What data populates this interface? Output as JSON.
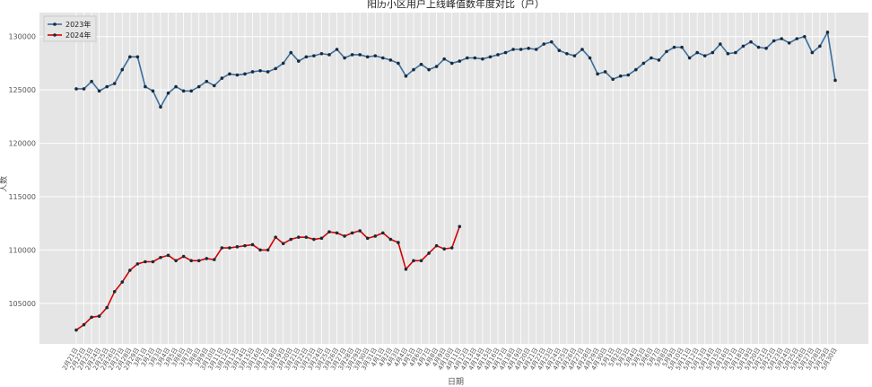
{
  "chart_data": {
    "type": "line",
    "title": "阳历小区用户上线峰值数年度对比（户）",
    "xlabel": "日期",
    "ylabel": "人数",
    "categories": [
      "2月21日",
      "2月22日",
      "2月23日",
      "2月24日",
      "2月25日",
      "2月26日",
      "2月27日",
      "2月28日",
      "2月29日",
      "3月1日",
      "3月2日",
      "3月3日",
      "3月4日",
      "3月5日",
      "3月6日",
      "3月7日",
      "3月8日",
      "3月9日",
      "3月10日",
      "3月11日",
      "3月12日",
      "3月13日",
      "3月14日",
      "3月15日",
      "3月16日",
      "3月17日",
      "3月18日",
      "3月19日",
      "3月20日",
      "3月21日",
      "3月22日",
      "3月23日",
      "3月24日",
      "3月25日",
      "3月26日",
      "3月27日",
      "3月28日",
      "3月29日",
      "3月30日",
      "3月31日",
      "4月1日",
      "4月2日",
      "4月3日",
      "4月4日",
      "4月5日",
      "4月6日",
      "4月7日",
      "4月8日",
      "4月9日",
      "4月10日",
      "4月11日",
      "4月12日",
      "4月13日",
      "4月14日",
      "4月15日",
      "4月16日",
      "4月17日",
      "4月18日",
      "4月19日",
      "4月20日",
      "4月21日",
      "4月22日",
      "4月23日",
      "4月24日",
      "4月25日",
      "4月26日",
      "4月27日",
      "4月28日",
      "4月29日",
      "4月30日",
      "5月1日",
      "5月2日",
      "5月3日",
      "5月4日",
      "5月5日",
      "5月6日",
      "5月7日",
      "5月8日",
      "5月9日",
      "5月10日",
      "5月11日",
      "5月12日",
      "5月13日",
      "5月14日",
      "5月15日",
      "5月16日",
      "5月17日",
      "5月18日",
      "5月19日",
      "5月20日",
      "5月21日",
      "5月22日",
      "5月23日",
      "5月24日",
      "5月25日",
      "5月26日",
      "5月27日",
      "5月28日",
      "5月29日",
      "5月30日"
    ],
    "series": [
      {
        "name": "2023年",
        "color": "#3a6f9f",
        "values": [
          125100,
          125100,
          125800,
          124900,
          125300,
          125600,
          126900,
          128100,
          128100,
          125300,
          124900,
          123400,
          124700,
          125300,
          124900,
          124900,
          125300,
          125800,
          125400,
          126100,
          126500,
          126400,
          126500,
          126700,
          126800,
          126700,
          127000,
          127500,
          128500,
          127700,
          128100,
          128200,
          128400,
          128300,
          128800,
          128000,
          128300,
          128300,
          128100,
          128200,
          128000,
          127800,
          127500,
          126300,
          126900,
          127400,
          126900,
          127200,
          127900,
          127500,
          127700,
          128000,
          128000,
          127900,
          128100,
          128300,
          128500,
          128800,
          128800,
          128900,
          128800,
          129300,
          129500,
          128700,
          128400,
          128200,
          128800,
          128000,
          126500,
          126700,
          126000,
          126300,
          126400,
          126900,
          127500,
          128000,
          127800,
          128600,
          129000,
          129000,
          128000,
          128500,
          128200,
          128500,
          129300,
          128400,
          128500,
          129100,
          129500,
          129000,
          128900,
          129600,
          129800,
          129400,
          129800,
          130000,
          128500,
          129100,
          130400,
          125900
        ]
      },
      {
        "name": "2024年",
        "color": "#d40000",
        "values": [
          102500,
          103000,
          103700,
          103800,
          104600,
          106100,
          107000,
          108100,
          108700,
          108900,
          108900,
          109300,
          109500,
          109000,
          109400,
          109000,
          109000,
          109200,
          109100,
          110200,
          110200,
          110300,
          110400,
          110500,
          110000,
          110000,
          111200,
          110600,
          111000,
          111200,
          111200,
          111000,
          111100,
          111700,
          111600,
          111300,
          111600,
          111800,
          111100,
          111300,
          111600,
          111000,
          110700,
          108200,
          109000,
          109000,
          109700,
          110400,
          110100,
          110200,
          112200,
          null,
          null,
          null,
          null,
          null,
          null,
          null,
          null,
          null,
          null,
          null,
          null,
          null,
          null,
          null,
          null,
          null,
          null,
          null,
          null,
          null,
          null,
          null,
          null,
          null,
          null,
          null,
          null,
          null,
          null,
          null,
          null,
          null,
          null,
          null,
          null,
          null,
          null,
          null,
          null,
          null,
          null,
          null,
          null,
          null,
          null,
          null,
          null,
          null
        ]
      }
    ],
    "ylim": [
      101200,
      132250
    ],
    "yticks": [
      105000,
      110000,
      115000,
      120000,
      125000,
      130000
    ],
    "grid": true,
    "legend": "upper left"
  }
}
